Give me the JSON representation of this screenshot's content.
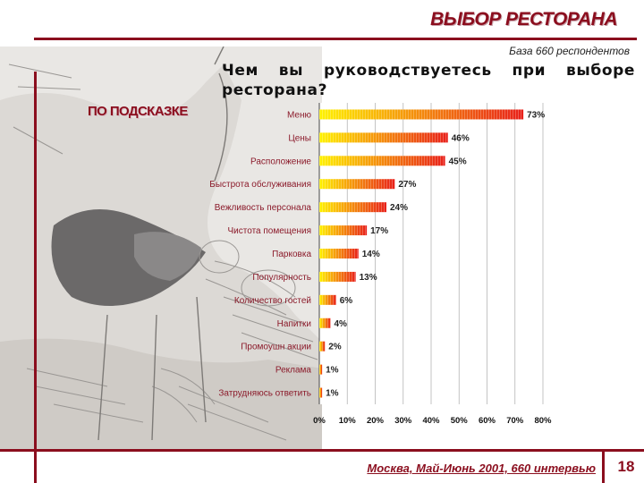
{
  "slide": {
    "title": "ВЫБОР РЕСТОРАНА",
    "base_note": "База 660 респондентов",
    "question": "Чем вы руководствуетесь при выборе ресторана?",
    "hint": "ПО ПОДСКАЗКЕ",
    "footer": "Москва, Май-Июнь 2001,  660 интервью",
    "page_number": "18"
  },
  "colors": {
    "accent": "#8B0E1E",
    "bar_start": "#FFF200",
    "bar_end": "#E8201A"
  },
  "chart_data": {
    "type": "bar",
    "orientation": "horizontal",
    "categories": [
      "Меню",
      "Цены",
      "Расположение",
      "Быстрота обслуживания",
      "Вежливость персонала",
      "Чистота помещения",
      "Парковка",
      "Популярность",
      "Количество гостей",
      "Напитки",
      "Промоушн акции",
      "Реклама",
      "Затрудняюсь ответить"
    ],
    "values": [
      73,
      46,
      45,
      27,
      24,
      17,
      14,
      13,
      6,
      4,
      2,
      1,
      1
    ],
    "value_labels": [
      "73%",
      "46%",
      "45%",
      "27%",
      "24%",
      "17%",
      "14%",
      "13%",
      "6%",
      "4%",
      "2%",
      "1%",
      "1%"
    ],
    "xlim": [
      0,
      80
    ],
    "xticks": [
      "0%",
      "10%",
      "20%",
      "30%",
      "40%",
      "50%",
      "60%",
      "70%",
      "80%"
    ],
    "grid": true
  }
}
